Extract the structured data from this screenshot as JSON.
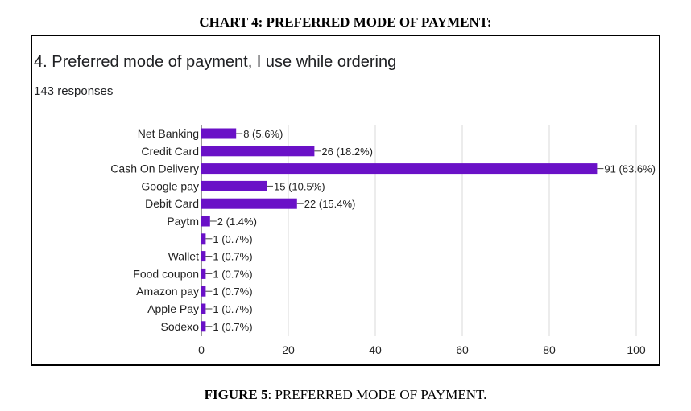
{
  "heading": "CHART 4: PREFERRED MODE OF PAYMENT:",
  "question_title": "4. Preferred mode of payment, I use while ordering",
  "responses": "143 responses",
  "caption": {
    "label": "FIGURE 5",
    "text": ": PREFERRED MODE OF PAYMENT."
  },
  "colors": {
    "bar": "#6a11c7",
    "grid": "#d9d9d9",
    "frame": "#000000"
  },
  "chart_data": {
    "type": "bar",
    "orientation": "horizontal",
    "categories": [
      "Net Banking",
      "Credit Card",
      "Cash On Delivery",
      "Google pay",
      "Debit Card",
      "Paytm",
      "",
      "Wallet",
      "Food coupon",
      "Amazon pay",
      "Apple Pay",
      "Sodexo"
    ],
    "values": [
      8,
      26,
      91,
      15,
      22,
      2,
      1,
      1,
      1,
      1,
      1,
      1
    ],
    "data_labels": [
      "8 (5.6%)",
      "26 (18.2%)",
      "91 (63.6%)",
      "15 (10.5%)",
      "22 (15.4%)",
      "2 (1.4%)",
      "1 (0.7%)",
      "1 (0.7%)",
      "1 (0.7%)",
      "1 (0.7%)",
      "1 (0.7%)",
      "1 (0.7%)"
    ],
    "xlim": [
      0,
      100
    ],
    "xticks": [
      0,
      20,
      40,
      60,
      80,
      100
    ],
    "grid": true
  }
}
